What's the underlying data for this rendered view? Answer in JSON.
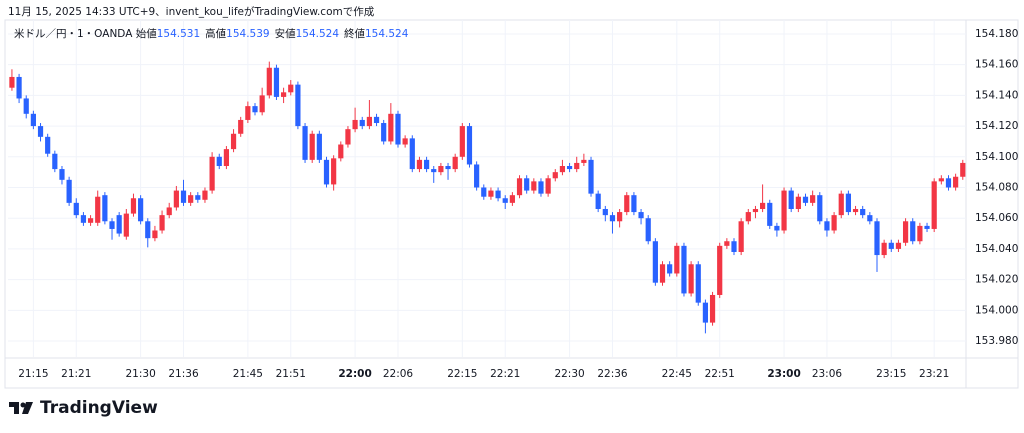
{
  "chart_data": {
    "type": "candlestick",
    "caption": "11月 15, 2025 14:33 UTC+9、invent_kou_lifeがTradingView.comで作成",
    "symbol": "米ドル／円・1・OANDA",
    "legend_values": [
      {
        "label": "始値",
        "value": 154.531
      },
      {
        "label": "高値",
        "value": 154.539
      },
      {
        "label": "安値",
        "value": 154.524
      },
      {
        "label": "終値",
        "value": 154.524
      }
    ],
    "brand": "TradingView",
    "up_color": "#f23645",
    "down_color": "#2962ff",
    "grid": true,
    "x": [
      "21:12",
      "21:13",
      "21:14",
      "21:15",
      "21:16",
      "21:17",
      "21:18",
      "21:19",
      "21:20",
      "21:21",
      "21:22",
      "21:23",
      "21:24",
      "21:25",
      "21:26",
      "21:27",
      "21:28",
      "21:29",
      "21:30",
      "21:31",
      "21:32",
      "21:33",
      "21:34",
      "21:35",
      "21:36",
      "21:37",
      "21:38",
      "21:39",
      "21:40",
      "21:41",
      "21:42",
      "21:43",
      "21:44",
      "21:45",
      "21:46",
      "21:47",
      "21:48",
      "21:49",
      "21:50",
      "21:51",
      "21:52",
      "21:53",
      "21:54",
      "21:55",
      "21:56",
      "21:57",
      "21:58",
      "21:59",
      "22:00",
      "22:01",
      "22:02",
      "22:03",
      "22:04",
      "22:05",
      "22:06",
      "22:07",
      "22:08",
      "22:09",
      "22:10",
      "22:11",
      "22:12",
      "22:13",
      "22:14",
      "22:15",
      "22:16",
      "22:17",
      "22:18",
      "22:19",
      "22:20",
      "22:21",
      "22:22",
      "22:23",
      "22:24",
      "22:25",
      "22:26",
      "22:27",
      "22:28",
      "22:29",
      "22:30",
      "22:31",
      "22:32",
      "22:33",
      "22:34",
      "22:35",
      "22:36",
      "22:37",
      "22:38",
      "22:39",
      "22:40",
      "22:41",
      "22:42",
      "22:43",
      "22:44",
      "22:45",
      "22:46",
      "22:47",
      "22:48",
      "22:49",
      "22:50",
      "22:51",
      "22:52",
      "22:53",
      "22:54",
      "22:55",
      "22:56",
      "22:57",
      "22:58",
      "22:59",
      "23:00",
      "23:01",
      "23:02",
      "23:03",
      "23:04",
      "23:05",
      "23:06",
      "23:07",
      "23:08",
      "23:09",
      "23:10",
      "23:11",
      "23:12",
      "23:13",
      "23:14",
      "23:15",
      "23:16",
      "23:17",
      "23:18",
      "23:19",
      "23:20",
      "23:21",
      "23:22",
      "23:23",
      "23:24",
      "23:25"
    ],
    "open": [
      154.145,
      154.152,
      154.138,
      154.128,
      154.12,
      154.113,
      154.102,
      154.092,
      154.085,
      154.07,
      154.062,
      154.057,
      154.057,
      154.075,
      154.058,
      154.062,
      154.048,
      154.063,
      154.073,
      154.058,
      154.047,
      154.052,
      154.062,
      154.067,
      154.078,
      154.07,
      154.075,
      154.072,
      154.078,
      154.1,
      154.094,
      154.105,
      154.115,
      154.124,
      154.133,
      154.129,
      154.14,
      154.158,
      154.139,
      154.142,
      154.147,
      154.12,
      154.098,
      154.115,
      154.098,
      154.082,
      154.099,
      154.108,
      154.118,
      154.124,
      154.12,
      154.126,
      154.122,
      154.11,
      154.128,
      154.108,
      154.112,
      154.092,
      154.098,
      154.092,
      154.09,
      154.094,
      154.092,
      154.1,
      154.12,
      154.095,
      154.08,
      154.074,
      154.078,
      154.073,
      154.07,
      154.075,
      154.086,
      154.078,
      154.084,
      154.076,
      154.086,
      154.09,
      154.094,
      154.092,
      154.096,
      154.098,
      154.076,
      154.066,
      154.062,
      154.058,
      154.064,
      154.075,
      154.064,
      154.06,
      154.045,
      154.018,
      154.03,
      154.024,
      154.042,
      154.011,
      154.03,
      154.005,
      153.992,
      154.01,
      154.042,
      154.045,
      154.038,
      154.058,
      154.064,
      154.066,
      154.07,
      154.055,
      154.052,
      154.078,
      154.066,
      154.074,
      154.07,
      154.075,
      154.058,
      154.052,
      154.062,
      154.076,
      154.064,
      154.066,
      154.062,
      154.058,
      154.036,
      154.044,
      154.04,
      154.044,
      154.058,
      154.045,
      154.055,
      154.053,
      154.084,
      154.086,
      154.08,
      154.087
    ],
    "high": [
      154.157,
      154.154,
      154.14,
      154.13,
      154.122,
      154.115,
      154.104,
      154.094,
      154.087,
      154.073,
      154.064,
      154.062,
      154.078,
      154.077,
      154.06,
      154.064,
      154.066,
      154.076,
      154.075,
      154.06,
      154.055,
      154.065,
      154.07,
      154.081,
      154.085,
      154.077,
      154.077,
      154.08,
      154.103,
      154.102,
      154.107,
      154.118,
      154.126,
      154.136,
      154.135,
      154.145,
      154.162,
      154.16,
      154.145,
      154.15,
      154.149,
      154.122,
      154.117,
      154.117,
      154.1,
      154.101,
      154.11,
      154.12,
      154.132,
      154.126,
      154.137,
      154.128,
      154.124,
      154.135,
      154.13,
      154.114,
      154.114,
      154.1,
      154.1,
      154.094,
      154.096,
      154.096,
      154.102,
      154.122,
      154.122,
      154.097,
      154.082,
      154.08,
      154.08,
      154.075,
      154.077,
      154.088,
      154.088,
      154.086,
      154.086,
      154.088,
      154.092,
      154.098,
      154.096,
      154.1,
      154.102,
      154.1,
      154.078,
      154.068,
      154.064,
      154.066,
      154.077,
      154.077,
      154.066,
      154.062,
      154.047,
      154.032,
      154.032,
      154.044,
      154.044,
      154.032,
      154.032,
      154.007,
      154.012,
      154.044,
      154.047,
      154.047,
      154.06,
      154.066,
      154.068,
      154.082,
      154.072,
      154.057,
      154.08,
      154.08,
      154.076,
      154.076,
      154.078,
      154.077,
      154.06,
      154.064,
      154.078,
      154.078,
      154.068,
      154.068,
      154.064,
      154.06,
      154.046,
      154.046,
      154.046,
      154.06,
      154.06,
      154.057,
      154.057,
      154.086,
      154.088,
      154.088,
      154.089,
      154.098
    ],
    "low": [
      154.143,
      154.135,
      154.125,
      154.118,
      154.11,
      154.1,
      154.09,
      154.082,
      154.068,
      154.06,
      154.055,
      154.055,
      154.055,
      154.056,
      154.046,
      154.048,
      154.046,
      154.061,
      154.056,
      154.041,
      154.045,
      154.05,
      154.06,
      154.065,
      154.068,
      154.068,
      154.07,
      154.07,
      154.076,
      154.092,
      154.092,
      154.103,
      154.113,
      154.122,
      154.127,
      154.127,
      154.138,
      154.137,
      154.135,
      154.14,
      154.118,
      154.096,
      154.096,
      154.096,
      154.08,
      154.078,
      154.097,
      154.106,
      154.116,
      154.118,
      154.118,
      154.12,
      154.108,
      154.108,
      154.106,
      154.106,
      154.09,
      154.09,
      154.09,
      154.083,
      154.088,
      154.085,
      154.09,
      154.098,
      154.093,
      154.078,
      154.072,
      154.072,
      154.071,
      154.066,
      154.068,
      154.073,
      154.076,
      154.076,
      154.074,
      154.074,
      154.084,
      154.088,
      154.09,
      154.09,
      154.094,
      154.074,
      154.064,
      154.058,
      154.05,
      154.054,
      154.062,
      154.062,
      154.056,
      154.043,
      154.016,
      154.016,
      154.022,
      154.022,
      154.009,
      154.009,
      154.003,
      153.985,
      153.99,
      154.008,
      154.04,
      154.036,
      154.036,
      154.056,
      154.06,
      154.064,
      154.053,
      154.048,
      154.05,
      154.064,
      154.064,
      154.068,
      154.068,
      154.056,
      154.048,
      154.05,
      154.06,
      154.062,
      154.062,
      154.06,
      154.056,
      154.025,
      154.034,
      154.038,
      154.038,
      154.042,
      154.043,
      154.043,
      154.051,
      154.051,
      154.082,
      154.078,
      154.078,
      154.085
    ],
    "close": [
      154.152,
      154.138,
      154.128,
      154.12,
      154.113,
      154.102,
      154.092,
      154.085,
      154.07,
      154.062,
      154.057,
      154.06,
      154.074,
      154.058,
      154.053,
      154.05,
      154.063,
      154.073,
      154.058,
      154.047,
      154.052,
      154.062,
      154.067,
      154.078,
      154.07,
      154.075,
      154.072,
      154.078,
      154.1,
      154.094,
      154.105,
      154.115,
      154.124,
      154.133,
      154.129,
      154.14,
      154.158,
      154.139,
      154.142,
      154.147,
      154.12,
      154.098,
      154.115,
      154.098,
      154.082,
      154.099,
      154.108,
      154.118,
      154.124,
      154.12,
      154.126,
      154.122,
      154.11,
      154.128,
      154.108,
      154.112,
      154.092,
      154.098,
      154.092,
      154.09,
      154.094,
      154.092,
      154.1,
      154.12,
      154.095,
      154.08,
      154.074,
      154.078,
      154.073,
      154.07,
      154.075,
      154.086,
      154.078,
      154.084,
      154.076,
      154.086,
      154.09,
      154.094,
      154.092,
      154.096,
      154.098,
      154.076,
      154.066,
      154.062,
      154.058,
      154.064,
      154.075,
      154.064,
      154.06,
      154.045,
      154.018,
      154.03,
      154.024,
      154.042,
      154.011,
      154.03,
      154.005,
      153.992,
      154.01,
      154.042,
      154.045,
      154.038,
      154.058,
      154.064,
      154.066,
      154.07,
      154.055,
      154.052,
      154.078,
      154.066,
      154.074,
      154.07,
      154.075,
      154.058,
      154.052,
      154.062,
      154.076,
      154.064,
      154.066,
      154.062,
      154.058,
      154.036,
      154.044,
      154.04,
      154.044,
      154.058,
      154.045,
      154.055,
      154.053,
      154.084,
      154.086,
      154.08,
      154.087,
      154.096
    ],
    "ylim": [
      153.9696,
      154.1891
    ],
    "yticks": [
      {
        "value": 153.98,
        "label": "153.980"
      },
      {
        "value": 154.0,
        "label": "154.000"
      },
      {
        "value": 154.02,
        "label": "154.020"
      },
      {
        "value": 154.04,
        "label": "154.040"
      },
      {
        "value": 154.06,
        "label": "154.060"
      },
      {
        "value": 154.08,
        "label": "154.080"
      },
      {
        "value": 154.1,
        "label": "154.100"
      },
      {
        "value": 154.12,
        "label": "154.120"
      },
      {
        "value": 154.14,
        "label": "154.140"
      },
      {
        "value": 154.16,
        "label": "154.160"
      },
      {
        "value": 154.18,
        "label": "154.180"
      }
    ],
    "xticks": [
      "21:15",
      "21:21",
      "21:30",
      "21:36",
      "21:45",
      "21:51",
      "22:00",
      "22:06",
      "22:15",
      "22:21",
      "22:30",
      "22:36",
      "22:45",
      "22:51",
      "23:00",
      "23:06",
      "23:15",
      "23:21"
    ]
  }
}
